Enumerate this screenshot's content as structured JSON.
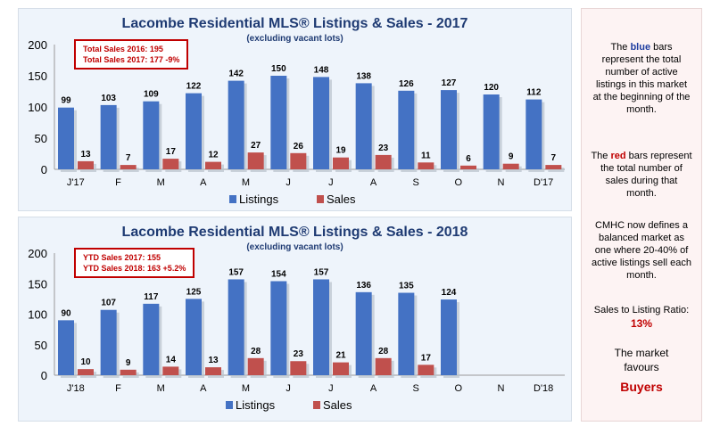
{
  "chart_data": [
    {
      "type": "bar",
      "title": "Lacombe Residential MLS® Listings & Sales - 2017",
      "subtitle": "(excluding vacant lots)",
      "categories": [
        "J'17",
        "F",
        "M",
        "A",
        "M",
        "J",
        "J",
        "A",
        "S",
        "O",
        "N",
        "D'17"
      ],
      "series": [
        {
          "name": "Listings",
          "color": "#4472c4",
          "values": [
            99,
            103,
            109,
            122,
            142,
            150,
            148,
            138,
            126,
            127,
            120,
            112
          ]
        },
        {
          "name": "Sales",
          "color": "#c0504d",
          "values": [
            13,
            7,
            17,
            12,
            27,
            26,
            19,
            23,
            11,
            6,
            9,
            7
          ]
        }
      ],
      "yticks": [
        "0",
        "50",
        "100",
        "150",
        "200"
      ],
      "ylim": [
        0,
        200
      ],
      "grid": false,
      "legend": "bottom",
      "callout": [
        "Total Sales 2016: 195",
        "Total Sales 2017: 177  -9%"
      ]
    },
    {
      "type": "bar",
      "title": "Lacombe Residential MLS® Listings & Sales - 2018",
      "subtitle": "(excluding vacant lots)",
      "categories": [
        "J'18",
        "F",
        "M",
        "A",
        "M",
        "J",
        "J",
        "A",
        "S",
        "O",
        "N",
        "D'18"
      ],
      "series": [
        {
          "name": "Listings",
          "color": "#4472c4",
          "values": [
            90,
            107,
            117,
            125,
            157,
            154,
            157,
            136,
            135,
            124,
            null,
            null
          ]
        },
        {
          "name": "Sales",
          "color": "#c0504d",
          "values": [
            10,
            9,
            14,
            13,
            28,
            23,
            21,
            28,
            17,
            null,
            null,
            null
          ]
        }
      ],
      "yticks": [
        "0",
        "50",
        "100",
        "150",
        "200"
      ],
      "ylim": [
        0,
        200
      ],
      "grid": false,
      "legend": "bottom",
      "callout": [
        "YTD Sales 2017: 155",
        "YTD Sales 2018: 163  +5.2%"
      ]
    }
  ],
  "sidebar": {
    "blue_pre": "The ",
    "blue_word": "blue",
    "blue_post": " bars represent the total number of active listings in this market at the beginning of the month.",
    "red_pre": "The ",
    "red_word": "red",
    "red_post": " bars represent the total number of sales during that month.",
    "cmhc": "CMHC now defines a balanced market as one where 20-40% of active listings sell each month.",
    "ratio_label": "Sales to Listing Ratio:",
    "ratio_value": "13%",
    "favours": "The market favours",
    "verdict": "Buyers"
  }
}
